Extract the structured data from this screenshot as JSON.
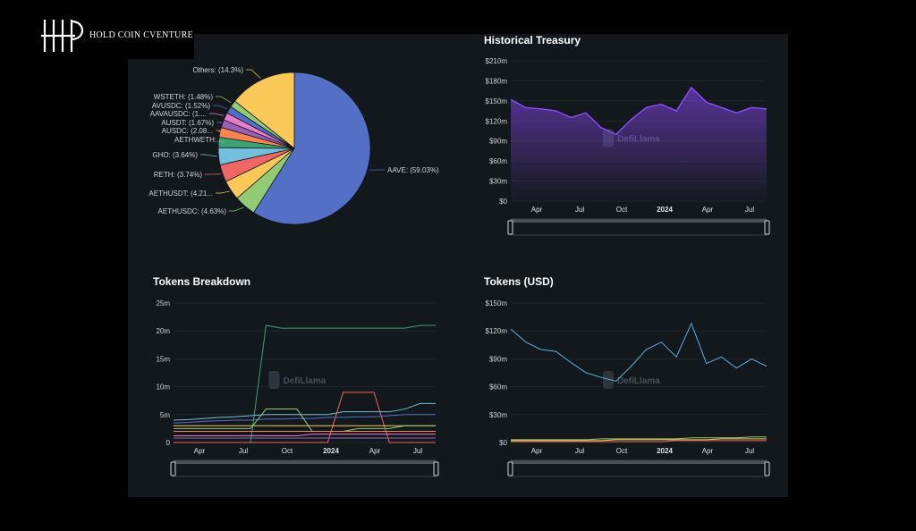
{
  "brand": {
    "name": "HOLD COIN CVENTURE",
    "logo_icon": "hp-monogram-icon"
  },
  "watermark": "DefiLlama",
  "colors": {
    "panel": "#13181c",
    "treasury_line": "#8f4cff",
    "tokens_usd_line": "#5bb0e6"
  },
  "time_axis_labels": [
    "Apr",
    "Jul",
    "Oct",
    "2024",
    "Apr",
    "Jul"
  ],
  "chart_data": [
    {
      "id": "pie",
      "type": "pie",
      "slices": [
        {
          "label": "AAVE: (59.03%)",
          "name": "AAVE",
          "value": 59.03,
          "color": "#5470c6"
        },
        {
          "label": "AETHUSDC: (4.63%)",
          "name": "AETHUSDC",
          "value": 4.63,
          "color": "#91cc75"
        },
        {
          "label": "AETHUSDT: (4.21...",
          "name": "AETHUSDT",
          "value": 4.21,
          "color": "#fac858"
        },
        {
          "label": "RETH: (3.74%)",
          "name": "RETH",
          "value": 3.74,
          "color": "#ee6666"
        },
        {
          "label": "GHO: (3.64%)",
          "name": "GHO",
          "value": 3.64,
          "color": "#73c0de"
        },
        {
          "label": "AETHWETH: ...",
          "name": "AETHWETH",
          "value": 2.2,
          "color": "#3ba272"
        },
        {
          "label": "AUSDC: (2.08...",
          "name": "AUSDC",
          "value": 2.08,
          "color": "#fc8452"
        },
        {
          "label": "AUSDT: (1.67%)",
          "name": "AUSDT",
          "value": 1.67,
          "color": "#9a60b4"
        },
        {
          "label": "AAVAUSDC: (1....",
          "name": "AAVAUSDC",
          "value": 1.6,
          "color": "#ea7ccc"
        },
        {
          "label": "AVUSDC: (1.52%)",
          "name": "AVUSDC",
          "value": 1.52,
          "color": "#5470c6"
        },
        {
          "label": "WSTETH: (1.48%)",
          "name": "WSTETH",
          "value": 1.48,
          "color": "#91cc75"
        },
        {
          "label": "Others: (14.3%)",
          "name": "Others",
          "value": 14.3,
          "color": "#fac858"
        }
      ]
    },
    {
      "id": "treasury",
      "type": "area",
      "title": "Historical Treasury",
      "y_ticks": [
        "$0",
        "$30m",
        "$60m",
        "$90m",
        "$120m",
        "$150m",
        "$180m",
        "$210m"
      ],
      "ylim": [
        0,
        210
      ],
      "y_unit": "$m",
      "x": [
        "Mar 2023",
        "Apr 2023",
        "May 2023",
        "Jun 2023",
        "Jul 2023",
        "Aug 2023",
        "Sep 2023",
        "Oct 2023",
        "Nov 2023",
        "Dec 2023",
        "Jan 2024",
        "Feb 2024",
        "Mar 2024",
        "Apr 2024",
        "May 2024",
        "Jun 2024",
        "Jul 2024",
        "Aug 2024"
      ],
      "values": [
        152,
        140,
        138,
        135,
        125,
        132,
        110,
        100,
        122,
        140,
        145,
        135,
        170,
        148,
        140,
        132,
        140,
        138
      ]
    },
    {
      "id": "breakdown",
      "type": "line",
      "title": "Tokens Breakdown",
      "y_ticks": [
        "0",
        "5m",
        "10m",
        "15m",
        "20m",
        "25m"
      ],
      "ylim": [
        0,
        25
      ],
      "y_unit": "m",
      "x": [
        "Mar 2023",
        "Apr 2023",
        "May 2023",
        "Jun 2023",
        "Jul 2023",
        "Aug 2023",
        "Sep 2023",
        "Oct 2023",
        "Nov 2023",
        "Dec 2023",
        "Jan 2024",
        "Feb 2024",
        "Mar 2024",
        "Apr 2024",
        "May 2024",
        "Jun 2024",
        "Jul 2024",
        "Aug 2024"
      ],
      "series": [
        {
          "color": "#3ba272",
          "values": [
            0,
            0,
            0,
            0,
            0,
            0,
            21,
            20.5,
            20.5,
            20.5,
            20.5,
            20.5,
            20.5,
            20.5,
            20.5,
            20.5,
            21,
            21
          ]
        },
        {
          "color": "#ee6666",
          "values": [
            0,
            0,
            0,
            0,
            0,
            0,
            0,
            0,
            0,
            0,
            0,
            9,
            9,
            9,
            0,
            0,
            0,
            0
          ]
        },
        {
          "color": "#73c0de",
          "values": [
            4,
            4.1,
            4.3,
            4.5,
            4.6,
            4.8,
            5,
            5,
            5,
            5,
            5,
            5.5,
            5.5,
            5.5,
            5.5,
            6,
            7,
            7
          ]
        },
        {
          "color": "#5470c6",
          "values": [
            3.5,
            3.6,
            3.8,
            3.9,
            4,
            4,
            4.2,
            4.2,
            4.3,
            4.3,
            4.5,
            4.5,
            4.6,
            4.6,
            4.8,
            5,
            5,
            5
          ]
        },
        {
          "color": "#fac858",
          "values": [
            3,
            3,
            3,
            3,
            3,
            3,
            3,
            3,
            3,
            3,
            3,
            3,
            3,
            3,
            3,
            3,
            3,
            3
          ]
        },
        {
          "color": "#91cc75",
          "values": [
            2.5,
            2.5,
            2.5,
            2.5,
            2.5,
            2.5,
            6,
            6,
            6,
            2,
            2,
            2,
            2.5,
            2.5,
            2.5,
            3,
            3,
            3
          ]
        },
        {
          "color": "#fc8452",
          "values": [
            2,
            2,
            2,
            2,
            2,
            2,
            2,
            2,
            2,
            2,
            2,
            2,
            2,
            2,
            2,
            2,
            2,
            2
          ]
        },
        {
          "color": "#ea7ccc",
          "values": [
            1.2,
            1.2,
            1.2,
            1.2,
            1.2,
            1.2,
            1.2,
            1.2,
            1.2,
            1.5,
            1.5,
            1.5,
            1.5,
            1.5,
            1.5,
            1.5,
            1.5,
            1.5
          ]
        },
        {
          "color": "#9a60b4",
          "values": [
            0.8,
            0.8,
            0.8,
            0.8,
            0.8,
            0.8,
            0.8,
            0.8,
            0.8,
            0.8,
            0.8,
            0.8,
            0.8,
            0.8,
            0.8,
            0.8,
            0.8,
            0.8
          ]
        }
      ]
    },
    {
      "id": "tokens_usd",
      "type": "line",
      "title": "Tokens (USD)",
      "y_ticks": [
        "$0",
        "$30m",
        "$60m",
        "$90m",
        "$120m",
        "$150m"
      ],
      "ylim": [
        0,
        150
      ],
      "y_unit": "$m",
      "x": [
        "Mar 2023",
        "Apr 2023",
        "May 2023",
        "Jun 2023",
        "Jul 2023",
        "Aug 2023",
        "Sep 2023",
        "Oct 2023",
        "Nov 2023",
        "Dec 2023",
        "Jan 2024",
        "Feb 2024",
        "Mar 2024",
        "Apr 2024",
        "May 2024",
        "Jun 2024",
        "Jul 2024",
        "Aug 2024"
      ],
      "series": [
        {
          "color": "#5bb0e6",
          "values": [
            122,
            108,
            100,
            98,
            86,
            75,
            70,
            66,
            82,
            100,
            108,
            92,
            128,
            85,
            92,
            80,
            90,
            82
          ]
        },
        {
          "color": "#91cc75",
          "values": [
            3,
            3,
            3,
            3,
            3,
            3,
            4,
            4,
            4,
            4,
            4,
            4,
            5,
            5,
            5,
            5,
            6,
            6
          ]
        },
        {
          "color": "#fac858",
          "values": [
            2,
            2,
            2,
            2,
            2,
            2,
            2,
            3,
            3,
            3,
            3,
            3,
            3,
            3,
            4,
            4,
            4,
            4
          ]
        },
        {
          "color": "#ee6666",
          "values": [
            1,
            1,
            1,
            1,
            1,
            1,
            1,
            1,
            1,
            1,
            1,
            2,
            2,
            2,
            2,
            2,
            2,
            2
          ]
        }
      ]
    }
  ]
}
